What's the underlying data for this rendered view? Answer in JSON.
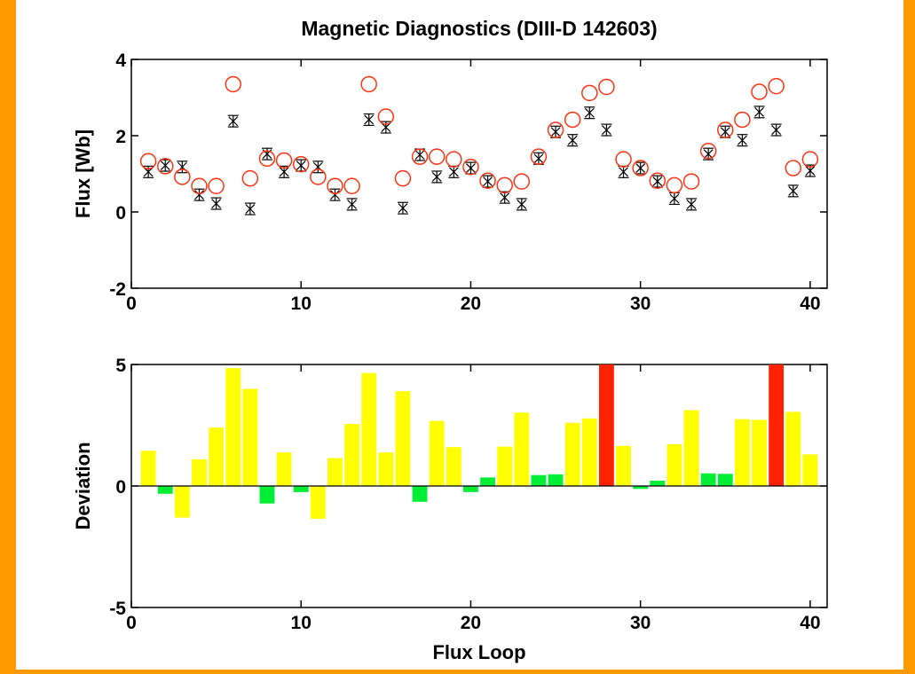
{
  "chart_data": [
    {
      "type": "scatter",
      "title": "Magnetic Diagnostics (DIII-D 142603)",
      "xlabel": "",
      "ylabel": "Flux [Wb]",
      "xlim": [
        0,
        41
      ],
      "ylim": [
        -2,
        4
      ],
      "xticks": [
        "0",
        "10",
        "20",
        "30",
        "40"
      ],
      "yticks": [
        "-2",
        "0",
        "2",
        "4"
      ],
      "grid": false,
      "series": [
        {
          "marker": "circle",
          "color": "#ff3311",
          "x": [
            1,
            2,
            3,
            4,
            5,
            6,
            7,
            8,
            9,
            10,
            11,
            12,
            13,
            14,
            15,
            16,
            17,
            18,
            19,
            20,
            21,
            22,
            23,
            24,
            25,
            26,
            27,
            28,
            29,
            30,
            31,
            32,
            33,
            34,
            35,
            36,
            37,
            38,
            39,
            40
          ],
          "y": [
            1.33,
            1.2,
            0.92,
            0.68,
            0.68,
            3.35,
            0.88,
            1.4,
            1.35,
            1.25,
            0.92,
            0.68,
            0.68,
            3.35,
            2.5,
            0.88,
            1.45,
            1.45,
            1.38,
            1.18,
            0.82,
            0.7,
            0.8,
            1.45,
            2.15,
            2.42,
            3.12,
            3.28,
            1.38,
            1.15,
            0.82,
            0.7,
            0.8,
            1.6,
            2.15,
            2.42,
            3.15,
            3.3,
            1.15,
            1.38
          ]
        },
        {
          "marker": "x-errorbar",
          "color": "#000000",
          "x": [
            1,
            2,
            3,
            4,
            5,
            6,
            7,
            8,
            9,
            10,
            11,
            12,
            13,
            14,
            15,
            16,
            17,
            18,
            19,
            20,
            21,
            22,
            23,
            24,
            25,
            26,
            27,
            28,
            29,
            30,
            31,
            32,
            33,
            34,
            35,
            36,
            37,
            38,
            39,
            40
          ],
          "y": [
            1.05,
            1.22,
            1.18,
            0.45,
            0.22,
            2.38,
            0.08,
            1.52,
            1.05,
            1.22,
            1.18,
            0.45,
            0.2,
            2.42,
            2.22,
            0.1,
            1.5,
            0.92,
            1.05,
            1.15,
            0.8,
            0.38,
            0.2,
            1.4,
            2.1,
            1.88,
            2.6,
            2.15,
            1.05,
            1.15,
            0.8,
            0.35,
            0.2,
            1.52,
            2.1,
            1.88,
            2.62,
            2.15,
            0.55,
            1.08
          ],
          "error": 0.15
        }
      ]
    },
    {
      "type": "bar",
      "title": "",
      "xlabel": "Flux Loop",
      "ylabel": "Deviation",
      "xlim": [
        0,
        41
      ],
      "ylim": [
        -5,
        5
      ],
      "xticks": [
        "0",
        "10",
        "20",
        "30",
        "40"
      ],
      "yticks": [
        "-5",
        "0",
        "5"
      ],
      "grid": false,
      "x": [
        1,
        2,
        3,
        4,
        5,
        6,
        7,
        8,
        9,
        10,
        11,
        12,
        13,
        14,
        15,
        16,
        17,
        18,
        19,
        20,
        21,
        22,
        23,
        24,
        25,
        26,
        27,
        28,
        29,
        30,
        31,
        32,
        33,
        34,
        35,
        36,
        37,
        38,
        39,
        40
      ],
      "values": [
        1.45,
        -0.32,
        -1.3,
        1.1,
        2.4,
        4.85,
        4.0,
        -0.72,
        1.38,
        -0.25,
        -1.35,
        1.15,
        2.55,
        4.65,
        1.38,
        3.9,
        -0.65,
        2.68,
        1.6,
        -0.25,
        0.35,
        1.62,
        3.02,
        0.45,
        0.48,
        2.6,
        2.78,
        5.0,
        1.65,
        -0.12,
        0.22,
        1.72,
        3.12,
        0.52,
        0.5,
        2.75,
        2.72,
        5.0,
        3.05,
        1.3
      ],
      "colors": [
        "#ffff00",
        "#00ee33",
        "#ffff00",
        "#ffff00",
        "#ffff00",
        "#ffff00",
        "#ffff00",
        "#00ee33",
        "#ffff00",
        "#00ee33",
        "#ffff00",
        "#ffff00",
        "#ffff00",
        "#ffff00",
        "#ffff00",
        "#ffff00",
        "#00ee33",
        "#ffff00",
        "#ffff00",
        "#00ee33",
        "#00ee33",
        "#ffff00",
        "#ffff00",
        "#00ee33",
        "#00ee33",
        "#ffff00",
        "#ffff00",
        "#ff2200",
        "#ffff00",
        "#00ee33",
        "#00ee33",
        "#ffff00",
        "#ffff00",
        "#00ee33",
        "#00ee33",
        "#ffff00",
        "#ffff00",
        "#ff2200",
        "#ffff00",
        "#ffff00"
      ]
    }
  ]
}
